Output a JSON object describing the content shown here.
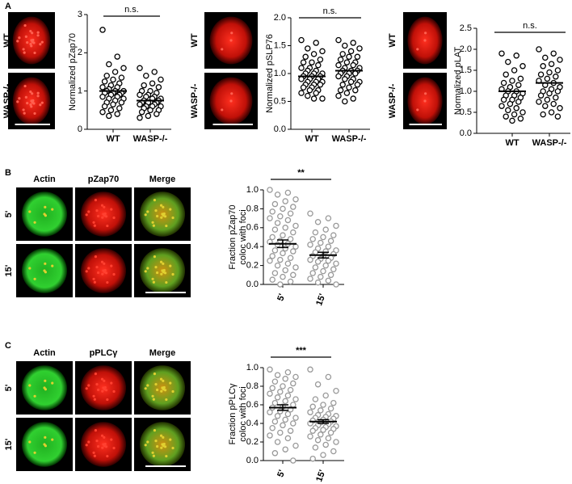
{
  "figure": {
    "panel_a": {
      "letter": "A",
      "blocks": [
        {
          "rows": [
            "WT",
            "WASP-/-"
          ]
        },
        {
          "rows": [
            "WT",
            "WASP-/-"
          ]
        },
        {
          "rows": [
            "WT",
            "WASP-/-"
          ]
        }
      ]
    },
    "panel_b": {
      "letter": "B",
      "columns": [
        "Actin",
        "pZap70",
        "Merge"
      ],
      "rows": [
        "5'",
        "15'"
      ]
    },
    "panel_c": {
      "letter": "C",
      "columns": [
        "Actin",
        "pPLCγ",
        "Merge"
      ],
      "rows": [
        "5'",
        "15'"
      ]
    }
  },
  "chart_data": [
    {
      "type": "strip",
      "ylabel": [
        "Normalized pZap70"
      ],
      "annotation": "n.s.",
      "point_color": "#000000",
      "categories": [
        "WT",
        "WASP-/-"
      ],
      "ylim": [
        0,
        3
      ],
      "yticks": [
        0,
        1,
        2,
        3
      ],
      "points": [
        [
          2.6,
          1.9,
          1.7,
          1.6,
          1.5,
          1.4,
          1.35,
          1.3,
          1.25,
          1.2,
          1.15,
          1.1,
          1.1,
          1.05,
          1.0,
          1.0,
          1.0,
          0.95,
          0.95,
          0.95,
          0.9,
          0.9,
          0.85,
          0.85,
          0.8,
          0.8,
          0.75,
          0.7,
          0.7,
          0.65,
          0.6,
          0.55,
          0.5,
          0.45,
          0.4,
          0.35
        ],
        [
          1.6,
          1.5,
          1.4,
          1.3,
          1.2,
          1.15,
          1.1,
          1.0,
          1.0,
          0.95,
          0.9,
          0.9,
          0.85,
          0.85,
          0.8,
          0.8,
          0.75,
          0.75,
          0.7,
          0.7,
          0.7,
          0.7,
          0.65,
          0.65,
          0.6,
          0.6,
          0.6,
          0.55,
          0.5,
          0.5,
          0.45,
          0.4,
          0.35,
          0.3
        ]
      ],
      "means": [
        1.0,
        0.75
      ]
    },
    {
      "type": "strip",
      "ylabel": [
        "Normalized pSLP76"
      ],
      "annotation": "n.s.",
      "point_color": "#000000",
      "categories": [
        "WT",
        "WASP-/-"
      ],
      "ylim": [
        0,
        2
      ],
      "yticks": [
        {
          "value": 0,
          "label": "0.0"
        },
        0.5,
        {
          "value": 1,
          "label": "1.0"
        },
        1.5,
        {
          "value": 2,
          "label": "2.0"
        }
      ],
      "points": [
        [
          1.6,
          1.55,
          1.45,
          1.4,
          1.35,
          1.3,
          1.25,
          1.2,
          1.2,
          1.15,
          1.1,
          1.1,
          1.05,
          1.05,
          1.0,
          1.0,
          1.0,
          0.95,
          0.95,
          0.95,
          0.9,
          0.9,
          0.9,
          0.85,
          0.85,
          0.85,
          0.8,
          0.8,
          0.8,
          0.75,
          0.75,
          0.7,
          0.7,
          0.65,
          0.65,
          0.6,
          0.55,
          0.55
        ],
        [
          1.6,
          1.55,
          1.5,
          1.45,
          1.4,
          1.35,
          1.3,
          1.3,
          1.25,
          1.2,
          1.2,
          1.15,
          1.15,
          1.1,
          1.1,
          1.05,
          1.05,
          1.05,
          1.0,
          1.0,
          1.0,
          0.95,
          0.95,
          0.9,
          0.9,
          0.85,
          0.85,
          0.8,
          0.8,
          0.75,
          0.7,
          0.7,
          0.65,
          0.6,
          0.55,
          0.5
        ]
      ],
      "means": [
        0.95,
        1.05
      ]
    },
    {
      "type": "strip",
      "ylabel": [
        "Normalized pLAT"
      ],
      "annotation": "n.s.",
      "point_color": "#000000",
      "categories": [
        "WT",
        "WASP-/-"
      ],
      "ylim": [
        0,
        2.5
      ],
      "yticks": [
        {
          "value": 0,
          "label": "0.0"
        },
        0.5,
        {
          "value": 1,
          "label": "1.0"
        },
        1.5,
        {
          "value": 2,
          "label": "2.0"
        },
        2.5
      ],
      "points": [
        [
          1.9,
          1.85,
          1.7,
          1.6,
          1.5,
          1.4,
          1.3,
          1.25,
          1.2,
          1.15,
          1.1,
          1.05,
          1.0,
          1.0,
          0.95,
          0.9,
          0.9,
          0.85,
          0.8,
          0.8,
          0.75,
          0.7,
          0.65,
          0.6,
          0.55,
          0.5,
          0.45,
          0.4,
          0.35,
          0.3
        ],
        [
          2.0,
          1.9,
          1.8,
          1.75,
          1.65,
          1.6,
          1.5,
          1.45,
          1.4,
          1.35,
          1.3,
          1.25,
          1.2,
          1.15,
          1.1,
          1.05,
          1.0,
          1.0,
          0.95,
          0.9,
          0.85,
          0.8,
          0.75,
          0.7,
          0.65,
          0.6,
          0.5,
          0.45,
          0.4
        ]
      ],
      "means": [
        1.0,
        1.2
      ]
    },
    {
      "type": "strip",
      "ylabel": [
        "Fraction pZap70",
        "coloc with foci"
      ],
      "annotation": "**",
      "point_color": "#999999",
      "categories": [
        "5'",
        "15'"
      ],
      "ylim": [
        0,
        1
      ],
      "yticks": [
        {
          "value": 0,
          "label": "0.0"
        },
        0.2,
        0.4,
        0.6,
        0.8,
        {
          "value": 1,
          "label": "1.0"
        }
      ],
      "points": [
        [
          1.0,
          0.97,
          0.95,
          0.9,
          0.88,
          0.85,
          0.82,
          0.8,
          0.77,
          0.75,
          0.72,
          0.7,
          0.68,
          0.65,
          0.62,
          0.6,
          0.58,
          0.55,
          0.52,
          0.5,
          0.48,
          0.46,
          0.45,
          0.43,
          0.42,
          0.4,
          0.38,
          0.36,
          0.35,
          0.33,
          0.3,
          0.28,
          0.26,
          0.25,
          0.22,
          0.2,
          0.18,
          0.15,
          0.12,
          0.1,
          0.08,
          0.05,
          0.03,
          0.0
        ],
        [
          0.75,
          0.7,
          0.66,
          0.62,
          0.58,
          0.55,
          0.52,
          0.5,
          0.48,
          0.46,
          0.44,
          0.42,
          0.4,
          0.38,
          0.36,
          0.35,
          0.34,
          0.32,
          0.3,
          0.3,
          0.28,
          0.27,
          0.26,
          0.25,
          0.24,
          0.22,
          0.2,
          0.18,
          0.16,
          0.14,
          0.12,
          0.1,
          0.08,
          0.06,
          0.04,
          0.02,
          0.0
        ]
      ],
      "means": [
        0.43,
        0.31
      ],
      "sems": [
        0.04,
        0.03
      ]
    },
    {
      "type": "strip",
      "ylabel": [
        "Fraction pPLCγ",
        "coloc with foci"
      ],
      "annotation": "***",
      "point_color": "#999999",
      "categories": [
        "5'",
        "15'"
      ],
      "ylim": [
        0,
        1
      ],
      "yticks": [
        {
          "value": 0,
          "label": "0.0"
        },
        0.2,
        0.4,
        0.6,
        0.8,
        {
          "value": 1,
          "label": "1.0"
        }
      ],
      "points": [
        [
          0.98,
          0.95,
          0.92,
          0.9,
          0.88,
          0.85,
          0.83,
          0.8,
          0.78,
          0.76,
          0.74,
          0.72,
          0.7,
          0.68,
          0.66,
          0.64,
          0.62,
          0.6,
          0.58,
          0.57,
          0.55,
          0.53,
          0.52,
          0.5,
          0.48,
          0.46,
          0.44,
          0.42,
          0.4,
          0.38,
          0.35,
          0.32,
          0.3,
          0.27,
          0.24,
          0.2,
          0.16,
          0.12,
          0.08,
          0.0
        ],
        [
          0.98,
          0.9,
          0.82,
          0.75,
          0.7,
          0.66,
          0.62,
          0.6,
          0.58,
          0.56,
          0.54,
          0.52,
          0.5,
          0.49,
          0.48,
          0.47,
          0.46,
          0.45,
          0.44,
          0.43,
          0.42,
          0.41,
          0.4,
          0.39,
          0.38,
          0.37,
          0.36,
          0.35,
          0.34,
          0.33,
          0.32,
          0.3,
          0.28,
          0.26,
          0.24,
          0.22,
          0.2,
          0.17,
          0.14,
          0.1,
          0.06,
          0.02
        ]
      ],
      "means": [
        0.57,
        0.42
      ],
      "sems": [
        0.03,
        0.02
      ]
    }
  ]
}
